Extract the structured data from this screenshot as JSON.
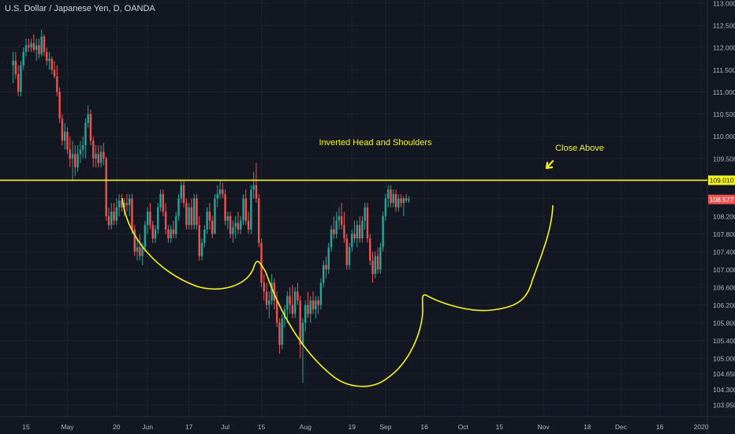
{
  "symbol_title": "U.S. Dollar / Japanese Yen, D, OANDA",
  "colors": {
    "background": "#131722",
    "up": "#26a69a",
    "down": "#ef5350",
    "annotation": "#f5f51f",
    "grid": "#1e222d",
    "axis_text": "#b2b5be",
    "price_tag": "#ef5350"
  },
  "chart_data": {
    "type": "candlestick",
    "title": "U.S. Dollar / Japanese Yen, D, OANDA",
    "ylim": [
      103.75,
      113.1
    ],
    "grid": true,
    "y_ticks": [
      "113.000",
      "112.500",
      "112.000",
      "111.500",
      "111.000",
      "110.500",
      "110.000",
      "109.500",
      "109.000",
      "108.600",
      "108.200",
      "107.800",
      "107.400",
      "107.000",
      "106.600",
      "106.200",
      "105.800",
      "105.400",
      "105.000",
      "104.650",
      "104.300",
      "103.950"
    ],
    "x_ticks": [
      {
        "label": "15",
        "day": 0
      },
      {
        "label": "May",
        "day": 16
      },
      {
        "label": "20",
        "day": 35
      },
      {
        "label": "Jun",
        "day": 47
      },
      {
        "label": "17",
        "day": 63
      },
      {
        "label": "Jul",
        "day": 77
      },
      {
        "label": "15",
        "day": 91
      },
      {
        "label": "Aug",
        "day": 108
      },
      {
        "label": "19",
        "day": 126
      },
      {
        "label": "Sep",
        "day": 139
      },
      {
        "label": "16",
        "day": 154
      },
      {
        "label": "Oct",
        "day": 169
      },
      {
        "label": "15",
        "day": 183
      },
      {
        "label": "Nov",
        "day": 200
      },
      {
        "label": "18",
        "day": 217
      },
      {
        "label": "Dec",
        "day": 230
      },
      {
        "label": "16",
        "day": 245
      },
      {
        "label": "2020",
        "day": 261
      }
    ],
    "resistance_level": 109.01,
    "resistance_label": "109.010",
    "last_price": 108.577,
    "last_price_label": "108.577",
    "annotations": [
      {
        "text": "Inverted Head and Shoulders"
      },
      {
        "text": "Close Above"
      }
    ],
    "candles": [
      {
        "day": -5,
        "o": 111.6,
        "h": 111.9,
        "l": 111.2,
        "c": 111.7
      },
      {
        "day": -4,
        "o": 111.7,
        "h": 111.9,
        "l": 111.3,
        "c": 111.4
      },
      {
        "day": -3,
        "o": 111.4,
        "h": 111.6,
        "l": 110.9,
        "c": 111.0
      },
      {
        "day": -2,
        "o": 111.0,
        "h": 111.7,
        "l": 110.9,
        "c": 111.6
      },
      {
        "day": -1,
        "o": 111.6,
        "h": 112.0,
        "l": 111.5,
        "c": 111.9
      },
      {
        "day": 0,
        "o": 111.9,
        "h": 112.2,
        "l": 111.8,
        "c": 112.05
      },
      {
        "day": 1,
        "o": 112.05,
        "h": 112.2,
        "l": 111.9,
        "c": 112.0
      },
      {
        "day": 2,
        "o": 112.0,
        "h": 112.2,
        "l": 111.9,
        "c": 112.1
      },
      {
        "day": 3,
        "o": 112.1,
        "h": 112.3,
        "l": 111.9,
        "c": 111.95
      },
      {
        "day": 4,
        "o": 111.95,
        "h": 112.2,
        "l": 111.7,
        "c": 112.05
      },
      {
        "day": 5,
        "o": 112.05,
        "h": 112.2,
        "l": 111.75,
        "c": 111.85
      },
      {
        "day": 6,
        "o": 111.85,
        "h": 112.4,
        "l": 111.8,
        "c": 112.25
      },
      {
        "day": 7,
        "o": 112.25,
        "h": 112.3,
        "l": 111.8,
        "c": 111.9
      },
      {
        "day": 8,
        "o": 111.9,
        "h": 112.0,
        "l": 111.6,
        "c": 111.7
      },
      {
        "day": 9,
        "o": 111.7,
        "h": 111.9,
        "l": 111.5,
        "c": 111.75
      },
      {
        "day": 10,
        "o": 111.75,
        "h": 111.8,
        "l": 111.4,
        "c": 111.5
      },
      {
        "day": 11,
        "o": 111.5,
        "h": 111.7,
        "l": 111.3,
        "c": 111.35
      },
      {
        "day": 12,
        "o": 111.35,
        "h": 111.6,
        "l": 110.9,
        "c": 111.0
      },
      {
        "day": 13,
        "o": 111.0,
        "h": 111.1,
        "l": 110.3,
        "c": 110.4
      },
      {
        "day": 14,
        "o": 110.4,
        "h": 110.5,
        "l": 109.8,
        "c": 109.9
      },
      {
        "day": 15,
        "o": 109.9,
        "h": 110.3,
        "l": 109.7,
        "c": 110.1
      },
      {
        "day": 16,
        "o": 110.1,
        "h": 110.2,
        "l": 109.6,
        "c": 109.7
      },
      {
        "day": 17,
        "o": 109.7,
        "h": 110.0,
        "l": 109.3,
        "c": 109.5
      },
      {
        "day": 18,
        "o": 109.5,
        "h": 109.9,
        "l": 109.0,
        "c": 109.6
      },
      {
        "day": 19,
        "o": 109.6,
        "h": 109.8,
        "l": 109.1,
        "c": 109.3
      },
      {
        "day": 20,
        "o": 109.3,
        "h": 109.8,
        "l": 109.2,
        "c": 109.6
      },
      {
        "day": 21,
        "o": 109.6,
        "h": 109.9,
        "l": 109.4,
        "c": 109.7
      },
      {
        "day": 22,
        "o": 109.7,
        "h": 110.0,
        "l": 109.5,
        "c": 109.8
      },
      {
        "day": 23,
        "o": 109.8,
        "h": 110.4,
        "l": 109.5,
        "c": 110.3
      },
      {
        "day": 24,
        "o": 110.3,
        "h": 110.7,
        "l": 110.2,
        "c": 110.5
      },
      {
        "day": 25,
        "o": 110.5,
        "h": 110.6,
        "l": 109.8,
        "c": 109.9
      },
      {
        "day": 26,
        "o": 109.9,
        "h": 110.0,
        "l": 109.3,
        "c": 109.5
      },
      {
        "day": 27,
        "o": 109.5,
        "h": 109.8,
        "l": 109.3,
        "c": 109.6
      },
      {
        "day": 28,
        "o": 109.6,
        "h": 109.8,
        "l": 109.3,
        "c": 109.4
      },
      {
        "day": 29,
        "o": 109.4,
        "h": 109.8,
        "l": 109.3,
        "c": 109.65
      },
      {
        "day": 30,
        "o": 109.65,
        "h": 109.85,
        "l": 109.35,
        "c": 109.5
      },
      {
        "day": 31,
        "o": 109.5,
        "h": 109.55,
        "l": 108.1,
        "c": 108.2
      },
      {
        "day": 32,
        "o": 108.2,
        "h": 108.4,
        "l": 107.9,
        "c": 108.0
      },
      {
        "day": 33,
        "o": 108.0,
        "h": 108.5,
        "l": 107.9,
        "c": 108.3
      },
      {
        "day": 34,
        "o": 108.3,
        "h": 108.5,
        "l": 108.0,
        "c": 108.1
      },
      {
        "day": 35,
        "o": 108.1,
        "h": 108.6,
        "l": 108.0,
        "c": 108.4
      },
      {
        "day": 36,
        "o": 108.4,
        "h": 108.7,
        "l": 108.2,
        "c": 108.55
      },
      {
        "day": 37,
        "o": 108.55,
        "h": 108.7,
        "l": 108.3,
        "c": 108.4
      },
      {
        "day": 38,
        "o": 108.4,
        "h": 108.6,
        "l": 108.2,
        "c": 108.5
      },
      {
        "day": 39,
        "o": 108.5,
        "h": 108.7,
        "l": 108.3,
        "c": 108.45
      },
      {
        "day": 40,
        "o": 108.45,
        "h": 108.7,
        "l": 108.2,
        "c": 108.6
      },
      {
        "day": 41,
        "o": 108.6,
        "h": 108.7,
        "l": 107.8,
        "c": 107.9
      },
      {
        "day": 42,
        "o": 107.9,
        "h": 108.0,
        "l": 107.3,
        "c": 107.4
      },
      {
        "day": 43,
        "o": 107.4,
        "h": 107.7,
        "l": 107.2,
        "c": 107.5
      },
      {
        "day": 44,
        "o": 107.5,
        "h": 107.8,
        "l": 107.2,
        "c": 107.3
      },
      {
        "day": 45,
        "o": 107.3,
        "h": 107.6,
        "l": 107.1,
        "c": 107.5
      },
      {
        "day": 46,
        "o": 107.5,
        "h": 108.1,
        "l": 107.4,
        "c": 108.0
      },
      {
        "day": 47,
        "o": 108.0,
        "h": 108.4,
        "l": 107.8,
        "c": 108.3
      },
      {
        "day": 48,
        "o": 108.3,
        "h": 108.5,
        "l": 107.9,
        "c": 108.0
      },
      {
        "day": 49,
        "o": 108.0,
        "h": 108.1,
        "l": 107.6,
        "c": 107.7
      },
      {
        "day": 50,
        "o": 107.7,
        "h": 108.0,
        "l": 107.6,
        "c": 107.9
      },
      {
        "day": 51,
        "o": 107.9,
        "h": 108.5,
        "l": 107.8,
        "c": 108.4
      },
      {
        "day": 52,
        "o": 108.4,
        "h": 108.8,
        "l": 108.3,
        "c": 108.7
      },
      {
        "day": 53,
        "o": 108.7,
        "h": 108.8,
        "l": 108.2,
        "c": 108.3
      },
      {
        "day": 54,
        "o": 108.3,
        "h": 108.5,
        "l": 107.8,
        "c": 107.9
      },
      {
        "day": 55,
        "o": 107.9,
        "h": 108.0,
        "l": 107.6,
        "c": 107.7
      },
      {
        "day": 56,
        "o": 107.7,
        "h": 108.0,
        "l": 107.6,
        "c": 107.9
      },
      {
        "day": 57,
        "o": 107.9,
        "h": 108.1,
        "l": 107.7,
        "c": 107.8
      },
      {
        "day": 58,
        "o": 107.8,
        "h": 108.3,
        "l": 107.7,
        "c": 108.2
      },
      {
        "day": 59,
        "o": 108.2,
        "h": 108.7,
        "l": 108.1,
        "c": 108.6
      },
      {
        "day": 60,
        "o": 108.6,
        "h": 109.0,
        "l": 108.5,
        "c": 108.9
      },
      {
        "day": 61,
        "o": 108.9,
        "h": 109.0,
        "l": 108.4,
        "c": 108.5
      },
      {
        "day": 62,
        "o": 108.5,
        "h": 108.6,
        "l": 107.9,
        "c": 108.0
      },
      {
        "day": 63,
        "o": 108.0,
        "h": 108.5,
        "l": 107.9,
        "c": 108.4
      },
      {
        "day": 64,
        "o": 108.4,
        "h": 108.6,
        "l": 107.9,
        "c": 108.0
      },
      {
        "day": 65,
        "o": 108.0,
        "h": 108.7,
        "l": 107.9,
        "c": 108.6
      },
      {
        "day": 66,
        "o": 108.6,
        "h": 108.7,
        "l": 107.9,
        "c": 108.0
      },
      {
        "day": 67,
        "o": 108.0,
        "h": 108.2,
        "l": 107.2,
        "c": 107.3
      },
      {
        "day": 68,
        "o": 107.3,
        "h": 107.7,
        "l": 107.2,
        "c": 107.6
      },
      {
        "day": 69,
        "o": 107.6,
        "h": 108.0,
        "l": 107.5,
        "c": 107.9
      },
      {
        "day": 70,
        "o": 107.9,
        "h": 108.4,
        "l": 107.8,
        "c": 108.3
      },
      {
        "day": 71,
        "o": 108.3,
        "h": 108.5,
        "l": 107.9,
        "c": 108.1
      },
      {
        "day": 72,
        "o": 108.1,
        "h": 108.2,
        "l": 107.7,
        "c": 107.8
      },
      {
        "day": 73,
        "o": 107.8,
        "h": 108.7,
        "l": 107.8,
        "c": 108.6
      },
      {
        "day": 74,
        "o": 108.6,
        "h": 108.9,
        "l": 108.4,
        "c": 108.7
      },
      {
        "day": 75,
        "o": 108.7,
        "h": 109.0,
        "l": 108.6,
        "c": 108.8
      },
      {
        "day": 76,
        "o": 108.8,
        "h": 108.95,
        "l": 108.6,
        "c": 108.7
      },
      {
        "day": 77,
        "o": 108.7,
        "h": 108.8,
        "l": 108.0,
        "c": 108.1
      },
      {
        "day": 78,
        "o": 108.1,
        "h": 108.3,
        "l": 107.9,
        "c": 108.2
      },
      {
        "day": 79,
        "o": 108.2,
        "h": 108.3,
        "l": 107.7,
        "c": 107.8
      },
      {
        "day": 80,
        "o": 107.8,
        "h": 108.1,
        "l": 107.6,
        "c": 107.95
      },
      {
        "day": 81,
        "o": 107.95,
        "h": 108.2,
        "l": 107.7,
        "c": 108.05
      },
      {
        "day": 82,
        "o": 108.05,
        "h": 108.3,
        "l": 107.8,
        "c": 107.9
      },
      {
        "day": 83,
        "o": 107.9,
        "h": 108.2,
        "l": 107.8,
        "c": 108.1
      },
      {
        "day": 84,
        "o": 108.1,
        "h": 108.7,
        "l": 108.0,
        "c": 108.6
      },
      {
        "day": 85,
        "o": 108.6,
        "h": 108.8,
        "l": 108.0,
        "c": 108.1
      },
      {
        "day": 86,
        "o": 108.1,
        "h": 108.3,
        "l": 107.8,
        "c": 107.9
      },
      {
        "day": 87,
        "o": 107.9,
        "h": 108.9,
        "l": 107.8,
        "c": 108.8
      },
      {
        "day": 88,
        "o": 108.8,
        "h": 109.2,
        "l": 108.6,
        "c": 108.9
      },
      {
        "day": 89,
        "o": 108.9,
        "h": 109.4,
        "l": 108.5,
        "c": 108.6
      },
      {
        "day": 90,
        "o": 108.6,
        "h": 108.7,
        "l": 107.5,
        "c": 107.6
      },
      {
        "day": 91,
        "o": 107.6,
        "h": 107.7,
        "l": 106.6,
        "c": 106.7
      },
      {
        "day": 92,
        "o": 106.7,
        "h": 106.9,
        "l": 106.3,
        "c": 106.5
      },
      {
        "day": 93,
        "o": 106.5,
        "h": 106.7,
        "l": 106.1,
        "c": 106.2
      },
      {
        "day": 94,
        "o": 106.2,
        "h": 106.5,
        "l": 105.9,
        "c": 106.3
      },
      {
        "day": 95,
        "o": 106.3,
        "h": 106.9,
        "l": 106.2,
        "c": 106.7
      },
      {
        "day": 96,
        "o": 106.7,
        "h": 106.8,
        "l": 106.1,
        "c": 106.3
      },
      {
        "day": 97,
        "o": 106.3,
        "h": 106.5,
        "l": 105.7,
        "c": 105.8
      },
      {
        "day": 98,
        "o": 105.8,
        "h": 105.9,
        "l": 105.1,
        "c": 105.3
      },
      {
        "day": 99,
        "o": 105.3,
        "h": 106.0,
        "l": 105.2,
        "c": 105.9
      },
      {
        "day": 100,
        "o": 105.9,
        "h": 106.2,
        "l": 105.7,
        "c": 106.1
      },
      {
        "day": 101,
        "o": 106.1,
        "h": 106.5,
        "l": 105.8,
        "c": 106.4
      },
      {
        "day": 102,
        "o": 106.4,
        "h": 106.6,
        "l": 106.0,
        "c": 106.2
      },
      {
        "day": 103,
        "o": 106.2,
        "h": 106.65,
        "l": 105.9,
        "c": 106.0
      },
      {
        "day": 104,
        "o": 106.0,
        "h": 106.6,
        "l": 105.9,
        "c": 106.5
      },
      {
        "day": 105,
        "o": 106.5,
        "h": 106.7,
        "l": 106.2,
        "c": 106.3
      },
      {
        "day": 106,
        "o": 106.3,
        "h": 106.4,
        "l": 105.0,
        "c": 105.3
      },
      {
        "day": 107,
        "o": 105.3,
        "h": 105.9,
        "l": 104.45,
        "c": 105.8
      },
      {
        "day": 108,
        "o": 105.8,
        "h": 106.3,
        "l": 105.6,
        "c": 106.2
      },
      {
        "day": 109,
        "o": 106.2,
        "h": 106.5,
        "l": 105.9,
        "c": 106.0
      },
      {
        "day": 110,
        "o": 106.0,
        "h": 106.4,
        "l": 105.8,
        "c": 106.3
      },
      {
        "day": 111,
        "o": 106.3,
        "h": 106.5,
        "l": 106.0,
        "c": 106.1
      },
      {
        "day": 112,
        "o": 106.1,
        "h": 106.4,
        "l": 105.9,
        "c": 106.3
      },
      {
        "day": 113,
        "o": 106.3,
        "h": 106.4,
        "l": 106.0,
        "c": 106.2
      },
      {
        "day": 114,
        "o": 106.2,
        "h": 106.8,
        "l": 106.1,
        "c": 106.7
      },
      {
        "day": 115,
        "o": 106.7,
        "h": 107.2,
        "l": 106.6,
        "c": 107.1
      },
      {
        "day": 116,
        "o": 107.1,
        "h": 107.3,
        "l": 106.8,
        "c": 107.0
      },
      {
        "day": 117,
        "o": 107.0,
        "h": 107.6,
        "l": 106.9,
        "c": 107.5
      },
      {
        "day": 118,
        "o": 107.5,
        "h": 108.0,
        "l": 107.4,
        "c": 107.9
      },
      {
        "day": 119,
        "o": 107.9,
        "h": 108.2,
        "l": 107.7,
        "c": 107.8
      },
      {
        "day": 120,
        "o": 107.8,
        "h": 108.3,
        "l": 107.7,
        "c": 108.1
      },
      {
        "day": 121,
        "o": 108.1,
        "h": 108.4,
        "l": 107.9,
        "c": 108.2
      },
      {
        "day": 122,
        "o": 108.2,
        "h": 108.5,
        "l": 107.9,
        "c": 108.0
      },
      {
        "day": 123,
        "o": 108.0,
        "h": 108.3,
        "l": 107.6,
        "c": 107.7
      },
      {
        "day": 124,
        "o": 107.7,
        "h": 107.8,
        "l": 107.0,
        "c": 107.1
      },
      {
        "day": 125,
        "o": 107.1,
        "h": 107.6,
        "l": 107.0,
        "c": 107.5
      },
      {
        "day": 126,
        "o": 107.5,
        "h": 107.9,
        "l": 107.4,
        "c": 107.8
      },
      {
        "day": 127,
        "o": 107.8,
        "h": 108.1,
        "l": 107.6,
        "c": 107.7
      },
      {
        "day": 128,
        "o": 107.7,
        "h": 108.1,
        "l": 107.5,
        "c": 108.0
      },
      {
        "day": 129,
        "o": 108.0,
        "h": 108.2,
        "l": 107.6,
        "c": 107.7
      },
      {
        "day": 130,
        "o": 107.7,
        "h": 108.2,
        "l": 107.6,
        "c": 108.1
      },
      {
        "day": 131,
        "o": 108.1,
        "h": 108.5,
        "l": 107.9,
        "c": 108.4
      },
      {
        "day": 132,
        "o": 108.4,
        "h": 108.5,
        "l": 107.6,
        "c": 107.7
      },
      {
        "day": 133,
        "o": 107.7,
        "h": 107.8,
        "l": 107.1,
        "c": 107.2
      },
      {
        "day": 134,
        "o": 107.2,
        "h": 107.4,
        "l": 106.7,
        "c": 106.9
      },
      {
        "day": 135,
        "o": 106.9,
        "h": 107.4,
        "l": 106.8,
        "c": 107.3
      },
      {
        "day": 136,
        "o": 107.3,
        "h": 107.5,
        "l": 106.9,
        "c": 107.0
      },
      {
        "day": 137,
        "o": 107.0,
        "h": 107.6,
        "l": 106.9,
        "c": 107.5
      },
      {
        "day": 138,
        "o": 107.5,
        "h": 108.3,
        "l": 107.4,
        "c": 108.2
      },
      {
        "day": 139,
        "o": 108.2,
        "h": 108.7,
        "l": 108.1,
        "c": 108.6
      },
      {
        "day": 140,
        "o": 108.6,
        "h": 108.9,
        "l": 108.4,
        "c": 108.8
      },
      {
        "day": 141,
        "o": 108.8,
        "h": 108.9,
        "l": 108.4,
        "c": 108.5
      },
      {
        "day": 142,
        "o": 108.5,
        "h": 108.8,
        "l": 108.4,
        "c": 108.7
      },
      {
        "day": 143,
        "o": 108.7,
        "h": 108.8,
        "l": 108.3,
        "c": 108.4
      },
      {
        "day": 144,
        "o": 108.4,
        "h": 108.7,
        "l": 108.3,
        "c": 108.6
      },
      {
        "day": 145,
        "o": 108.6,
        "h": 108.7,
        "l": 108.4,
        "c": 108.5
      },
      {
        "day": 146,
        "o": 108.5,
        "h": 108.65,
        "l": 108.2,
        "c": 108.6
      },
      {
        "day": 147,
        "o": 108.6,
        "h": 108.7,
        "l": 108.5,
        "c": 108.55
      },
      {
        "day": 148,
        "o": 108.55,
        "h": 108.65,
        "l": 108.5,
        "c": 108.577
      }
    ]
  }
}
